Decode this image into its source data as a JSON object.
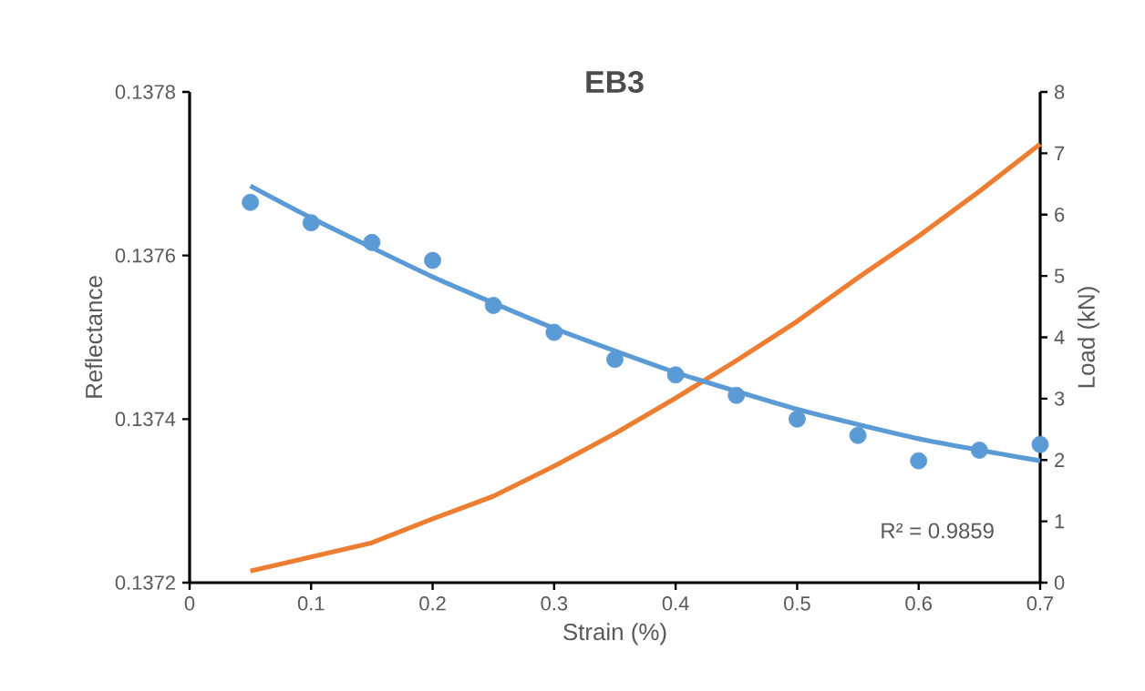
{
  "chart_data": {
    "type": "scatter",
    "title": "EB3",
    "xlabel": "Strain (%)",
    "ylabel": "Reflectance",
    "y2label": "Load (kN)",
    "x": [
      0.05,
      0.1,
      0.15,
      0.2,
      0.25,
      0.3,
      0.35,
      0.4,
      0.45,
      0.5,
      0.55,
      0.6,
      0.65,
      0.7
    ],
    "series": [
      {
        "color": "#5b9bd5",
        "values": [
          0.137665,
          0.13764,
          0.137616,
          0.137594,
          0.137539,
          0.137506,
          0.137473,
          0.137454,
          0.137429,
          0.1374,
          0.13738,
          0.137349,
          0.137362,
          0.137369
        ]
      },
      {
        "type": "line",
        "marker": "none",
        "color": "#5b9bd5",
        "x": [
          0.05,
          0.1,
          0.2,
          0.3,
          0.4,
          0.5,
          0.6,
          0.7
        ],
        "values": [
          0.137685,
          0.137646,
          0.137574,
          0.137511,
          0.137457,
          0.137412,
          0.137376,
          0.137349
        ]
      },
      {
        "type": "line",
        "marker": "none",
        "axis": "y2",
        "color": "#ed7d31",
        "values": [
          0.19,
          0.42,
          0.65,
          1.04,
          1.41,
          1.9,
          2.43,
          3.01,
          3.62,
          4.26,
          4.97,
          5.65,
          6.38,
          7.15
        ]
      }
    ],
    "xlim": [
      0,
      0.7
    ],
    "xticks": [
      0,
      0.1,
      0.2,
      0.3,
      0.4,
      0.5,
      0.6,
      0.7
    ],
    "ylim": [
      0.1372,
      0.1378
    ],
    "yticks": [
      0.1372,
      0.1374,
      0.1376,
      0.1378
    ],
    "y2lim": [
      0,
      8
    ],
    "y2ticks": [
      0,
      1,
      2,
      3,
      4,
      5,
      6,
      7,
      8
    ],
    "annotations": [
      "R² = 0.9859"
    ],
    "marker": "circle",
    "grid": false,
    "legend": false,
    "line_style": "solid"
  }
}
